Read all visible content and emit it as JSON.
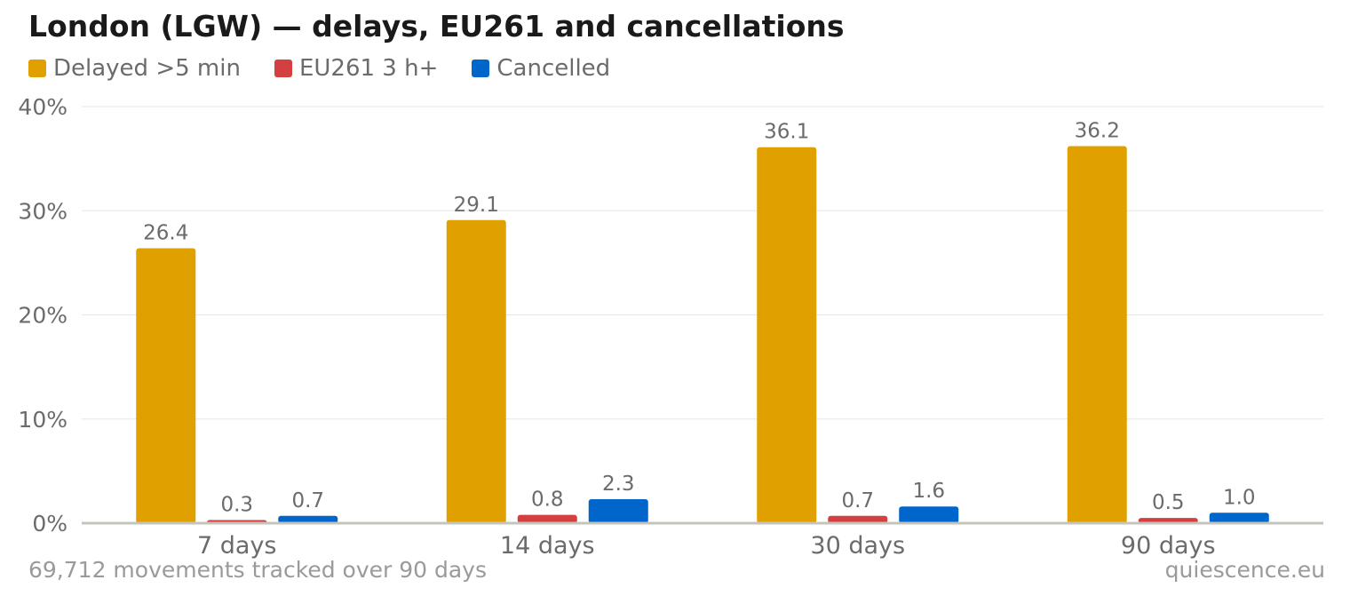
{
  "title": "London (LGW) — delays, EU261 and cancellations",
  "footnote": "69,712 movements tracked over 90 days",
  "source": "quiescence.eu",
  "chart_data": {
    "type": "bar",
    "title": "London (LGW) — delays, EU261 and cancellations",
    "categories": [
      "7 days",
      "14 days",
      "30 days",
      "90 days"
    ],
    "series": [
      {
        "name": "Delayed >5 min",
        "color": "#E0A000",
        "values": [
          26.4,
          29.1,
          36.1,
          36.2
        ],
        "labels": [
          "26.4",
          "29.1",
          "36.1",
          "36.2"
        ]
      },
      {
        "name": "EU261 3 h+",
        "color": "#D43F3F",
        "values": [
          0.3,
          0.8,
          0.7,
          0.5
        ],
        "labels": [
          "0.3",
          "0.8",
          "0.7",
          "0.5"
        ]
      },
      {
        "name": "Cancelled",
        "color": "#0066CC",
        "values": [
          0.7,
          2.3,
          1.6,
          1.0
        ],
        "labels": [
          "0.7",
          "2.3",
          "1.6",
          "1.0"
        ]
      }
    ],
    "yticks": [
      0,
      10,
      20,
      30,
      40
    ],
    "ytick_labels": [
      "0%",
      "10%",
      "20%",
      "30%",
      "40%"
    ],
    "ylim": [
      0,
      40
    ],
    "xlabel": "",
    "ylabel": "",
    "grid": true,
    "legend_position": "top-left"
  }
}
